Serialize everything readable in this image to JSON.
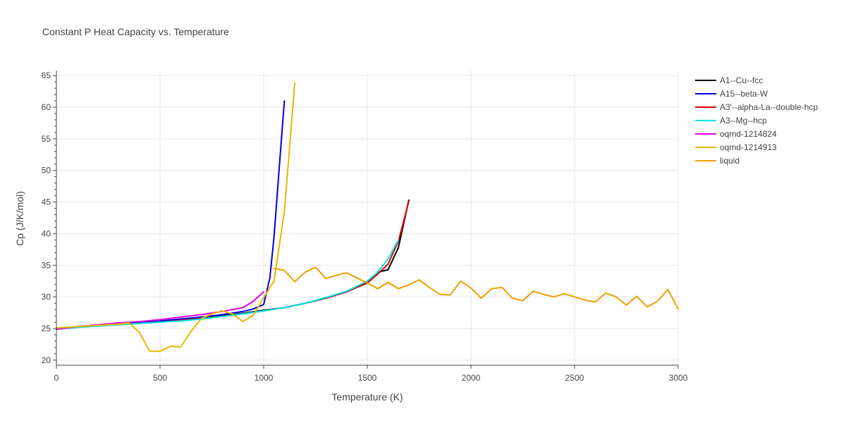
{
  "chart_data": {
    "type": "line",
    "title": "Constant P Heat Capacity vs. Temperature",
    "xlabel": "Temperature (K)",
    "ylabel": "Cp (J/K/mol)",
    "xlim": [
      0,
      3000
    ],
    "ylim": [
      19.2,
      65.8
    ],
    "xticks": [
      0,
      500,
      1000,
      1500,
      2000,
      2500,
      3000
    ],
    "yticks": [
      20,
      25,
      30,
      35,
      40,
      45,
      50,
      55,
      60,
      65
    ],
    "grid": true,
    "legend_position": "top-right",
    "series": [
      {
        "name": "A1--Cu--fcc",
        "color": "#000000",
        "x": [
          0,
          100,
          200,
          300,
          400,
          500,
          600,
          700,
          800,
          900,
          1000,
          1100,
          1200,
          1300,
          1400,
          1500,
          1550,
          1600,
          1650,
          1700
        ],
        "y": [
          24.9,
          25.2,
          25.5,
          25.7,
          25.9,
          26.1,
          26.4,
          26.7,
          27.0,
          27.4,
          27.9,
          28.3,
          29.0,
          29.8,
          30.8,
          32.3,
          33.9,
          34.3,
          37.8,
          45.3
        ]
      },
      {
        "name": "A15--beta-W",
        "color": "#0000dd",
        "x": [
          0,
          100,
          200,
          300,
          400,
          500,
          600,
          700,
          800,
          900,
          950,
          1000,
          1030,
          1050,
          1080,
          1100
        ],
        "y": [
          24.9,
          25.2,
          25.5,
          25.7,
          25.9,
          26.2,
          26.5,
          26.8,
          27.2,
          27.7,
          28.1,
          28.8,
          33.0,
          39.5,
          52.5,
          61.0
        ]
      },
      {
        "name": "A3'--alpha-La--double-hcp",
        "color": "#dd0000",
        "x": [
          0,
          100,
          200,
          300,
          400,
          500,
          600,
          700,
          800,
          900,
          1000,
          1100,
          1200,
          1300,
          1400,
          1500,
          1550,
          1600,
          1650,
          1700
        ],
        "y": [
          24.9,
          25.2,
          25.4,
          25.6,
          25.8,
          26.0,
          26.3,
          26.6,
          26.9,
          27.3,
          27.8,
          28.3,
          29.0,
          29.8,
          30.8,
          32.2,
          33.6,
          35.2,
          38.8,
          45.1
        ]
      },
      {
        "name": "A3--Mg--hcp",
        "color": "#00e6e6",
        "x": [
          0,
          100,
          200,
          300,
          400,
          500,
          600,
          700,
          800,
          900,
          1000,
          1100,
          1200,
          1300,
          1400,
          1500,
          1550,
          1600,
          1650
        ],
        "y": [
          24.9,
          25.2,
          25.4,
          25.6,
          25.8,
          26.0,
          26.2,
          26.5,
          26.9,
          27.3,
          27.8,
          28.3,
          29.0,
          29.9,
          30.9,
          32.5,
          33.9,
          36.0,
          39.0
        ]
      },
      {
        "name": "oqmd-1214824",
        "color": "#e600e6",
        "x": [
          0,
          100,
          200,
          300,
          400,
          500,
          600,
          700,
          800,
          900,
          950,
          1000
        ],
        "y": [
          24.9,
          25.3,
          25.6,
          25.9,
          26.1,
          26.4,
          26.8,
          27.2,
          27.7,
          28.3,
          29.3,
          30.8
        ]
      },
      {
        "name": "oqmd-1214913",
        "color": "#e6b800",
        "x": [
          0,
          50,
          100,
          150,
          200,
          250,
          300,
          350,
          400,
          450,
          500,
          550,
          600,
          650,
          700,
          750,
          800,
          850,
          900,
          950,
          1000,
          1050,
          1100,
          1150
        ],
        "y": [
          25.1,
          25.2,
          25.3,
          25.4,
          25.5,
          25.6,
          25.7,
          25.9,
          24.4,
          21.4,
          21.4,
          22.2,
          22.1,
          24.6,
          26.6,
          27.3,
          27.8,
          27.3,
          26.1,
          27.1,
          29.9,
          32.5,
          43.5,
          63.8
        ]
      },
      {
        "name": "liquid",
        "color": "#f0a000",
        "x": [
          1050,
          1100,
          1150,
          1200,
          1250,
          1300,
          1350,
          1400,
          1450,
          1500,
          1550,
          1600,
          1650,
          1700,
          1750,
          1800,
          1850,
          1900,
          1950,
          2000,
          2050,
          2100,
          2150,
          2200,
          2250,
          2300,
          2350,
          2400,
          2450,
          2500,
          2550,
          2600,
          2650,
          2700,
          2750,
          2800,
          2850,
          2900,
          2950,
          3000
        ],
        "y": [
          34.5,
          34.2,
          32.4,
          33.9,
          34.7,
          32.9,
          33.4,
          33.8,
          33.0,
          32.2,
          31.3,
          32.3,
          31.3,
          31.9,
          32.7,
          31.5,
          30.4,
          30.3,
          32.5,
          31.4,
          29.8,
          31.3,
          31.5,
          29.8,
          29.4,
          30.9,
          30.4,
          30.0,
          30.5,
          30.0,
          29.5,
          29.2,
          30.6,
          30.0,
          28.7,
          30.1,
          28.4,
          29.3,
          31.2,
          28.1
        ]
      }
    ]
  }
}
